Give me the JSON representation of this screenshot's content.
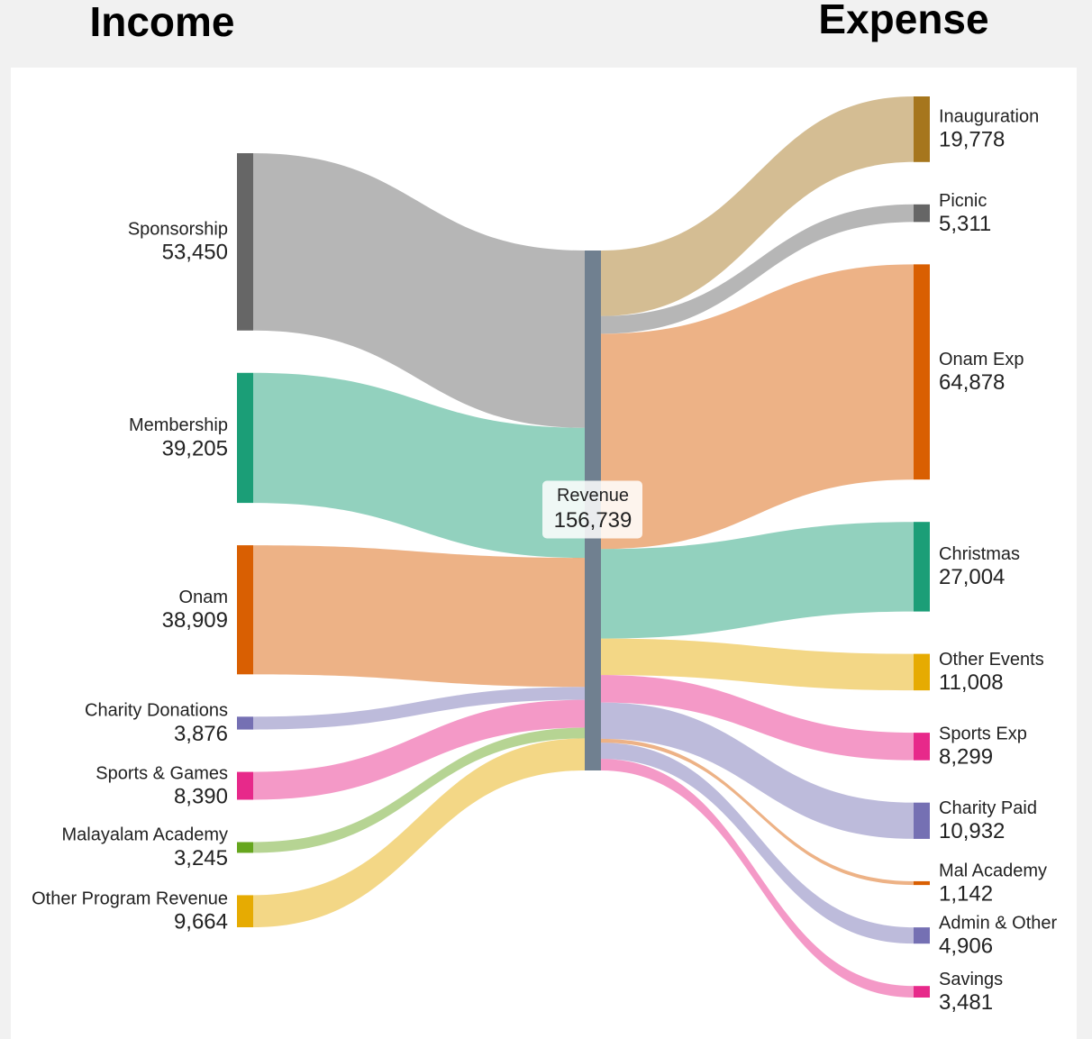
{
  "chart_data": {
    "type": "sankey",
    "left_label": "Income",
    "right_label": "Expense",
    "center": {
      "name": "Revenue",
      "value": 156739,
      "value_label": "156,739",
      "color": "#708090"
    },
    "sources": [
      {
        "name": "Sponsorship",
        "value": 53450,
        "value_label": "53,450",
        "color": "#666666"
      },
      {
        "name": "Membership",
        "value": 39205,
        "value_label": "39,205",
        "color": "#1b9e77"
      },
      {
        "name": "Onam",
        "value": 38909,
        "value_label": "38,909",
        "color": "#d95f02"
      },
      {
        "name": "Charity Donations",
        "value": 3876,
        "value_label": "3,876",
        "color": "#7570b3"
      },
      {
        "name": "Sports & Games",
        "value": 8390,
        "value_label": "8,390",
        "color": "#e7298a"
      },
      {
        "name": "Malayalam Academy",
        "value": 3245,
        "value_label": "3,245",
        "color": "#66a61e"
      },
      {
        "name": "Other Program Revenue",
        "value": 9664,
        "value_label": "9,664",
        "color": "#e6ab02"
      }
    ],
    "targets": [
      {
        "name": "Inauguration",
        "value": 19778,
        "value_label": "19,778",
        "color": "#a6761d"
      },
      {
        "name": "Picnic",
        "value": 5311,
        "value_label": "5,311",
        "color": "#666666"
      },
      {
        "name": "Onam Exp",
        "value": 64878,
        "value_label": "64,878",
        "color": "#d95f02"
      },
      {
        "name": "Christmas",
        "value": 27004,
        "value_label": "27,004",
        "color": "#1b9e77"
      },
      {
        "name": "Other Events",
        "value": 11008,
        "value_label": "11,008",
        "color": "#e6ab02"
      },
      {
        "name": "Sports Exp",
        "value": 8299,
        "value_label": "8,299",
        "color": "#e7298a"
      },
      {
        "name": "Charity Paid",
        "value": 10932,
        "value_label": "10,932",
        "color": "#7570b3"
      },
      {
        "name": "Mal Academy",
        "value": 1142,
        "value_label": "1,142",
        "color": "#d95f02"
      },
      {
        "name": "Admin & Other",
        "value": 4906,
        "value_label": "4,906",
        "color": "#7570b3"
      },
      {
        "name": "Savings",
        "value": 3481,
        "value_label": "3,481",
        "color": "#e7298a"
      }
    ]
  }
}
